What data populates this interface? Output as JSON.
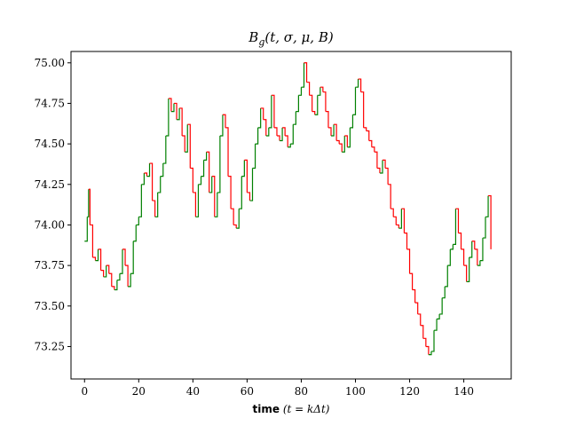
{
  "chart_data": {
    "type": "line",
    "title": "B_g(t, σ, μ, B)",
    "title_parts": {
      "base": "B",
      "sub": "g",
      "args": "(t, σ, μ, B)"
    },
    "xlabel": {
      "bold": "time",
      "rest": " (t = kΔt)"
    },
    "ylabel": "",
    "xlim": [
      -5,
      157.5
    ],
    "ylim": [
      73.05,
      75.07
    ],
    "x_ticks": [
      0,
      20,
      40,
      60,
      80,
      100,
      120,
      140
    ],
    "y_ticks": [
      73.25,
      73.5,
      73.75,
      74.0,
      74.25,
      74.5,
      74.75,
      75.0
    ],
    "y_tick_labels": [
      "73.25",
      "73.50",
      "73.75",
      "74.00",
      "74.25",
      "74.50",
      "74.75",
      "75.00"
    ],
    "grid": false,
    "legend": "none",
    "colors": {
      "up": "#008000",
      "down": "#ff0000",
      "axes": "#000000"
    },
    "note_encoding": "step path; upward moves drawn green, downward moves drawn red",
    "series": [
      {
        "x": [
          0,
          1,
          1.5,
          2,
          3,
          4,
          5,
          6,
          7,
          8,
          9,
          10,
          11,
          12,
          13,
          14,
          15,
          16,
          17,
          18,
          19,
          20,
          21,
          22,
          23,
          24,
          25,
          26,
          27,
          28,
          29,
          30,
          31,
          32,
          33,
          34,
          35,
          36,
          37,
          38,
          39,
          40,
          41,
          42,
          43,
          44,
          45,
          46,
          47,
          48,
          49,
          50,
          51,
          52,
          53,
          54,
          55,
          56,
          57,
          58,
          59,
          60,
          61,
          62,
          63,
          64,
          65,
          66,
          67,
          68,
          69,
          70,
          71,
          72,
          73,
          74,
          75,
          76,
          77,
          78,
          79,
          80,
          81,
          82,
          83,
          84,
          85,
          86,
          87,
          88,
          89,
          90,
          91,
          92,
          93,
          94,
          95,
          96,
          97,
          98,
          99,
          100,
          101,
          102,
          103,
          104,
          105,
          106,
          107,
          108,
          109,
          110,
          111,
          112,
          113,
          114,
          115,
          116,
          117,
          118,
          119,
          120,
          121,
          122,
          123,
          124,
          125,
          126,
          127,
          128,
          129,
          130,
          131,
          132,
          133,
          134,
          135,
          136,
          137,
          138,
          139,
          140,
          141,
          142,
          143,
          144,
          145,
          146,
          147,
          148,
          149,
          150
        ],
        "values": [
          73.9,
          74.05,
          74.22,
          74.0,
          73.8,
          73.78,
          73.85,
          73.72,
          73.68,
          73.75,
          73.7,
          73.62,
          73.6,
          73.66,
          73.7,
          73.85,
          73.75,
          73.62,
          73.7,
          73.9,
          74.0,
          74.05,
          74.25,
          74.32,
          74.3,
          74.38,
          74.15,
          74.05,
          74.2,
          74.3,
          74.38,
          74.55,
          74.78,
          74.7,
          74.75,
          74.65,
          74.72,
          74.55,
          74.45,
          74.62,
          74.35,
          74.2,
          74.05,
          74.25,
          74.3,
          74.4,
          74.45,
          74.2,
          74.3,
          74.05,
          74.2,
          74.55,
          74.68,
          74.6,
          74.3,
          74.1,
          74.0,
          73.98,
          74.1,
          74.3,
          74.4,
          74.2,
          74.15,
          74.35,
          74.5,
          74.6,
          74.72,
          74.65,
          74.55,
          74.6,
          74.8,
          74.6,
          74.55,
          74.52,
          74.6,
          74.55,
          74.48,
          74.5,
          74.62,
          74.7,
          74.8,
          74.85,
          75.0,
          74.88,
          74.8,
          74.7,
          74.68,
          74.8,
          74.85,
          74.82,
          74.7,
          74.6,
          74.55,
          74.62,
          74.52,
          74.5,
          74.45,
          74.55,
          74.48,
          74.6,
          74.68,
          74.85,
          74.9,
          74.82,
          74.6,
          74.58,
          74.52,
          74.48,
          74.45,
          74.35,
          74.32,
          74.4,
          74.35,
          74.25,
          74.1,
          74.05,
          74.0,
          73.98,
          74.1,
          73.95,
          73.85,
          73.7,
          73.6,
          73.52,
          73.45,
          73.38,
          73.3,
          73.25,
          73.2,
          73.22,
          73.35,
          73.42,
          73.45,
          73.55,
          73.62,
          73.75,
          73.85,
          73.88,
          74.1,
          73.95,
          73.85,
          73.75,
          73.65,
          73.8,
          73.9,
          73.85,
          73.75,
          73.78,
          73.92,
          74.05,
          74.18,
          73.85
        ]
      }
    ]
  }
}
